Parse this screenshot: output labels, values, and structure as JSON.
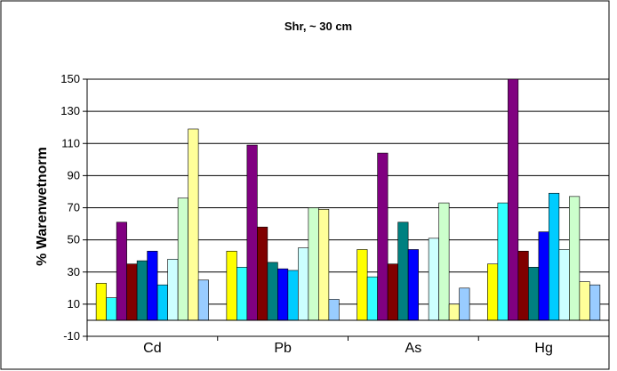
{
  "chart_data": {
    "type": "bar",
    "title": "Shr, ~ 30 cm",
    "xlabel": "",
    "ylabel": "% Warenwetnorm",
    "ylim": [
      -10,
      150
    ],
    "yticks": [
      -10,
      10,
      30,
      50,
      70,
      90,
      110,
      130,
      150
    ],
    "grid": true,
    "legend": "none",
    "categories": [
      "Cd",
      "Pb",
      "As",
      "Hg"
    ],
    "series": [
      {
        "color": "#ffff00",
        "values": [
          23,
          43,
          44,
          35
        ]
      },
      {
        "color": "#33ffff",
        "values": [
          14,
          33,
          27,
          73
        ]
      },
      {
        "color": "#800080",
        "values": [
          61,
          109,
          104,
          151
        ]
      },
      {
        "color": "#800000",
        "values": [
          35,
          58,
          35,
          43
        ]
      },
      {
        "color": "#008080",
        "values": [
          37,
          36,
          61,
          33
        ]
      },
      {
        "color": "#0000ff",
        "values": [
          43,
          32,
          44,
          55
        ]
      },
      {
        "color": "#00ccff",
        "values": [
          22,
          31,
          0,
          79
        ]
      },
      {
        "color": "#ccffff",
        "values": [
          38,
          45,
          51,
          44
        ]
      },
      {
        "color": "#ccffcc",
        "values": [
          76,
          70,
          73,
          77
        ]
      },
      {
        "color": "#ffff99",
        "values": [
          119,
          69,
          10,
          24
        ]
      },
      {
        "color": "#99ccff",
        "values": [
          25,
          13,
          20,
          22
        ]
      }
    ]
  }
}
